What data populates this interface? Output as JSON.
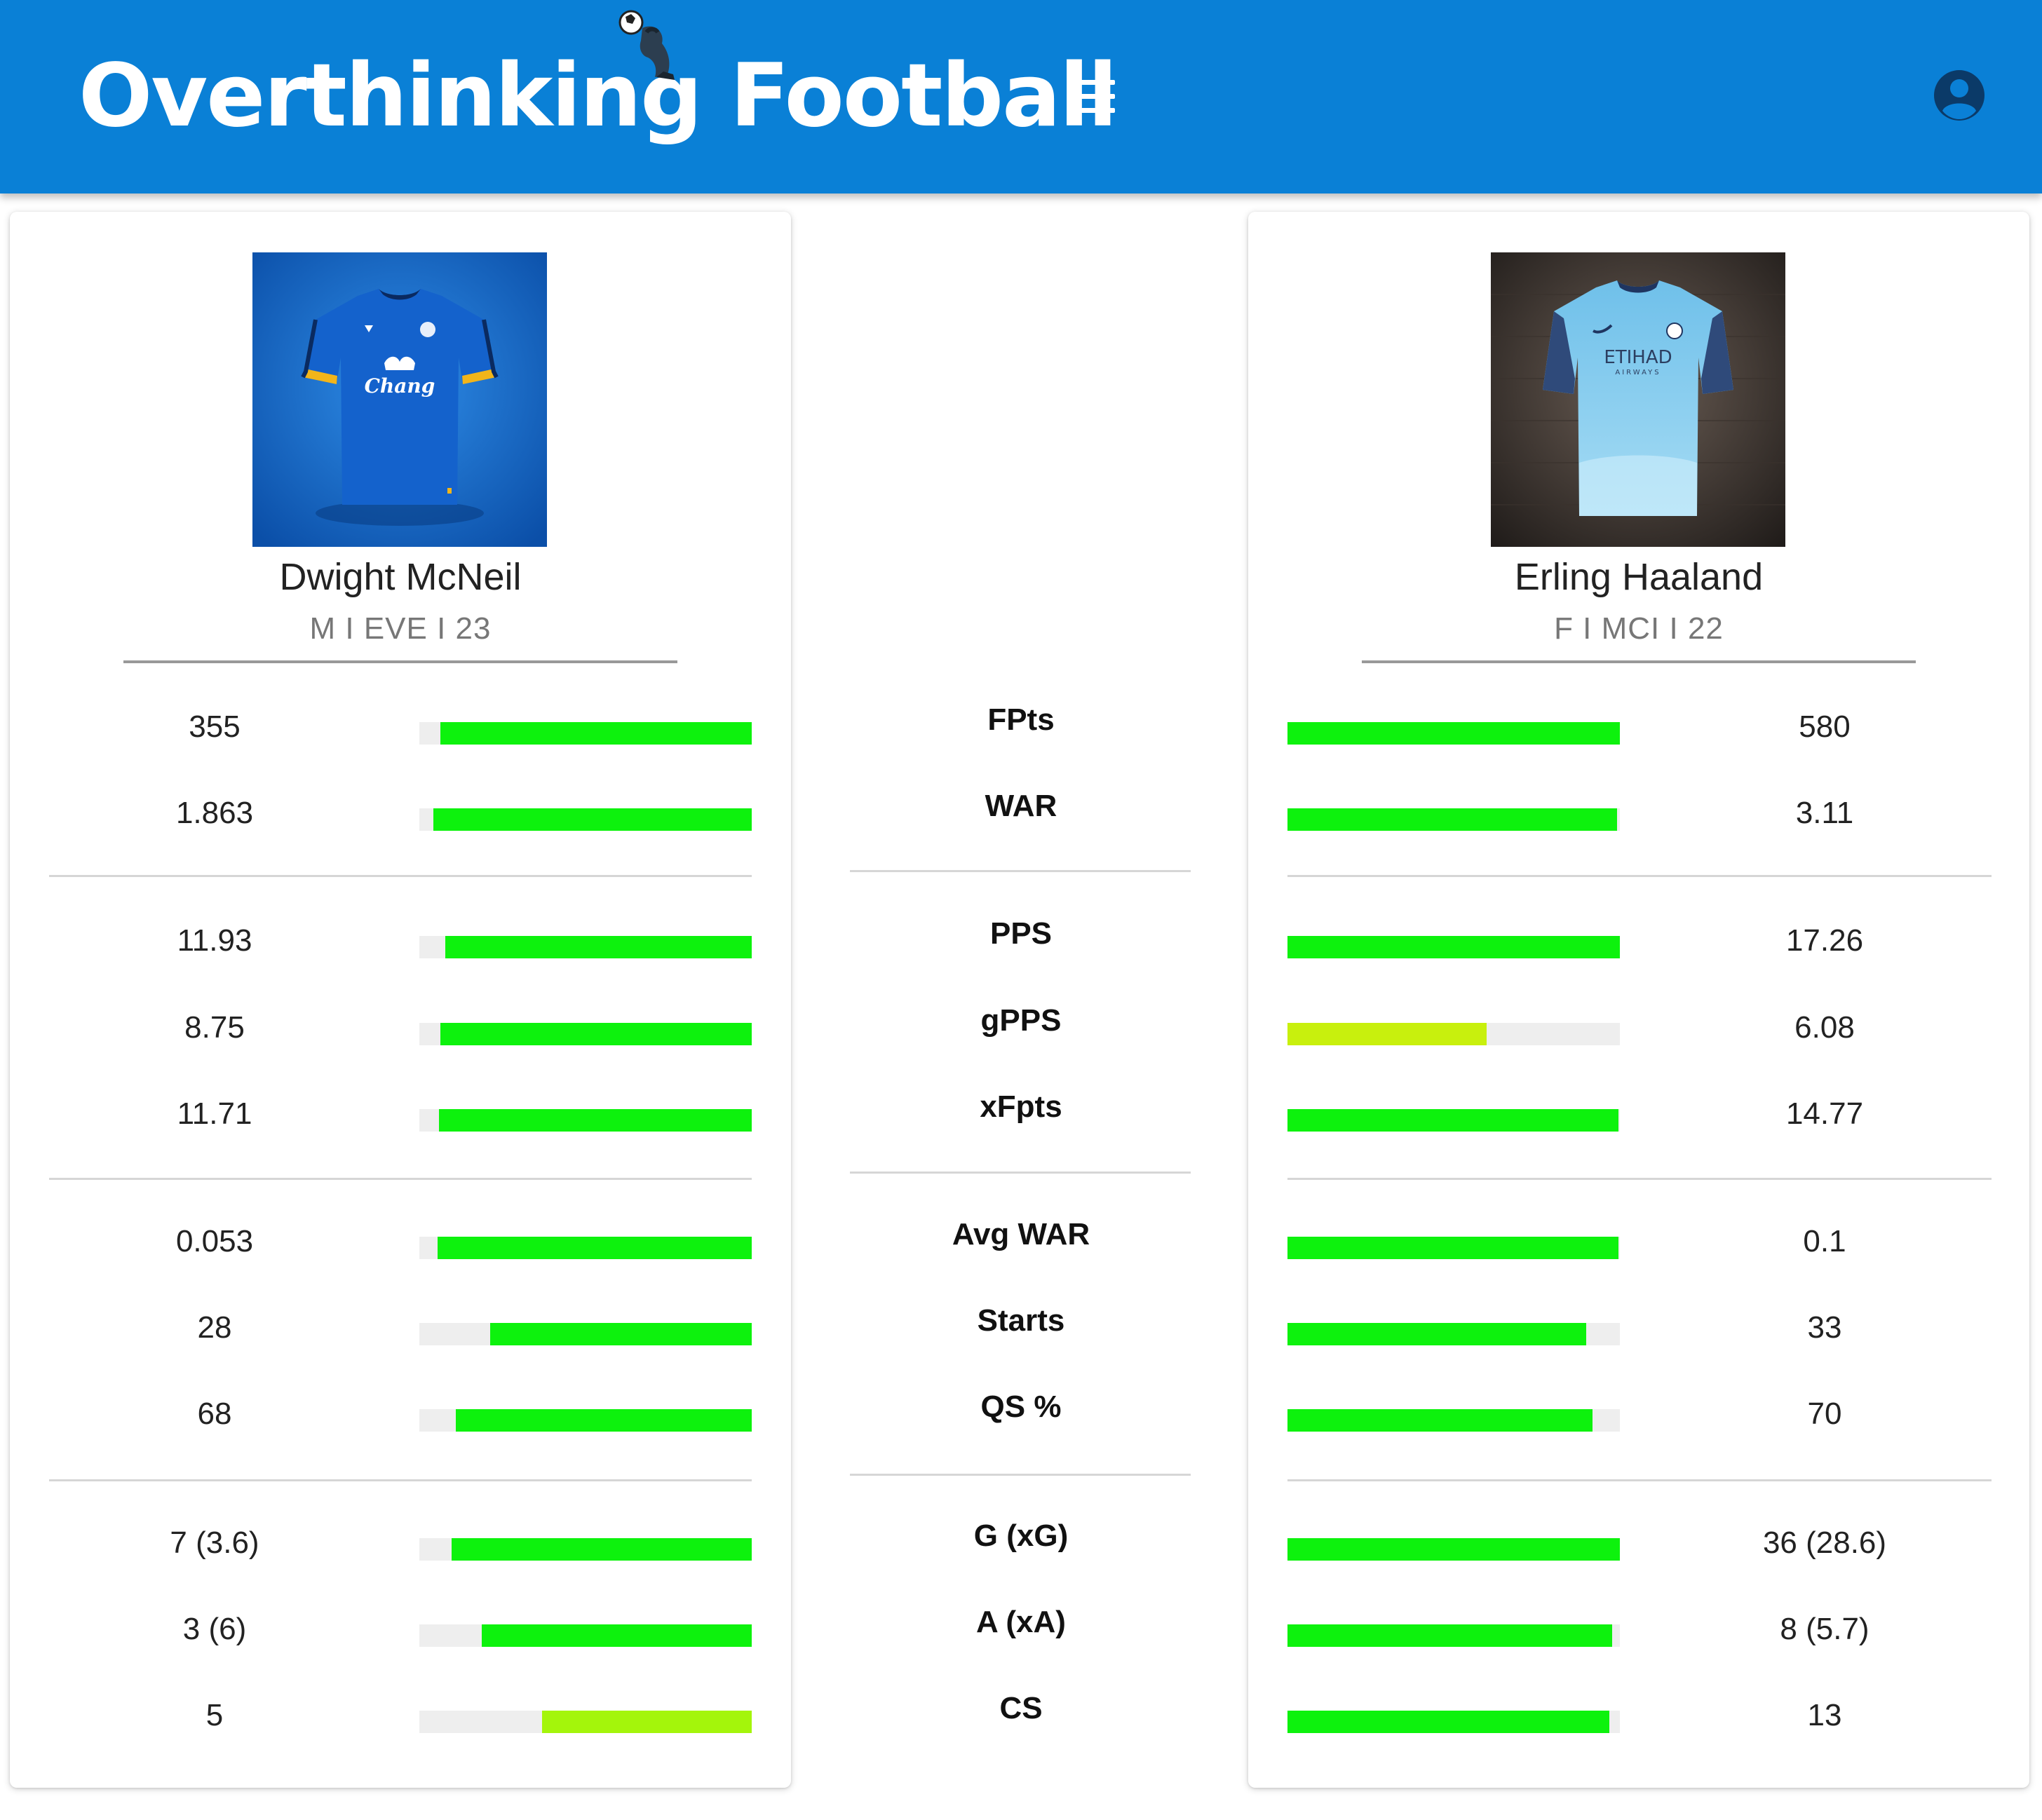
{
  "app": {
    "title": "Overthinking Football"
  },
  "icons": {
    "menu": "hamburger-menu-icon",
    "account": "account-circle-icon",
    "mascot": "thinker-with-ball-icon"
  },
  "colors": {
    "header": "#0a80d6",
    "bar_high": "#0df20d",
    "bar_mid_left": "#a4f50b",
    "bar_mid_right": "#c8f00d",
    "track": "#eeeeee"
  },
  "players": {
    "left": {
      "name": "Dwight McNeil",
      "meta": "M I EVE I 23",
      "jersey_sponsor": "Chang",
      "jersey_color": "#1062c8"
    },
    "right": {
      "name": "Erling Haaland",
      "meta": "F I MCI I 22",
      "jersey_sponsor": "ETIHAD",
      "jersey_sponsor_sub": "AIRWAYS",
      "jersey_color": "#7cc6ec"
    }
  },
  "stats": [
    {
      "label": "FPts",
      "left": "355",
      "right": "580",
      "left_pct": 93.7,
      "right_pct": 100,
      "left_color": "#0df20d",
      "right_color": "#0df20d"
    },
    {
      "label": "WAR",
      "left": "1.863",
      "right": "3.11",
      "left_pct": 95.7,
      "right_pct": 99.2,
      "left_color": "#0df20d",
      "right_color": "#0df20d"
    },
    {
      "label": "PPS",
      "left": "11.93",
      "right": "17.26",
      "left_pct": 92.2,
      "right_pct": 100,
      "left_color": "#0df20d",
      "right_color": "#0df20d"
    },
    {
      "label": "gPPS",
      "left": "8.75",
      "right": "6.08",
      "left_pct": 93.7,
      "right_pct": 60,
      "left_color": "#0df20d",
      "right_color": "#c8f00d"
    },
    {
      "label": "xFpts",
      "left": "11.71",
      "right": "14.77",
      "left_pct": 94.1,
      "right_pct": 99.6,
      "left_color": "#0df20d",
      "right_color": "#0df20d"
    },
    {
      "label": "Avg WAR",
      "left": "0.053",
      "right": "0.1",
      "left_pct": 94.5,
      "right_pct": 99.6,
      "left_color": "#0df20d",
      "right_color": "#0df20d"
    },
    {
      "label": "Starts",
      "left": "28",
      "right": "33",
      "left_pct": 78.8,
      "right_pct": 89.8,
      "left_color": "#0df20d",
      "right_color": "#0df20d"
    },
    {
      "label": "QS %",
      "left": "68",
      "right": "70",
      "left_pct": 89,
      "right_pct": 91.8,
      "left_color": "#0df20d",
      "right_color": "#0df20d"
    },
    {
      "label": "G (xG)",
      "left": "7 (3.6)",
      "right": "36 (28.6)",
      "left_pct": 90.2,
      "right_pct": 100,
      "left_color": "#0df20d",
      "right_color": "#0df20d"
    },
    {
      "label": "A (xA)",
      "left": "3 (6)",
      "right": "8 (5.7)",
      "left_pct": 81.2,
      "right_pct": 97.6,
      "left_color": "#0df20d",
      "right_color": "#0df20d"
    },
    {
      "label": "CS",
      "left": "5",
      "right": "13",
      "left_pct": 63.1,
      "right_pct": 96.9,
      "left_color": "#a4f50b",
      "right_color": "#0df20d"
    }
  ]
}
